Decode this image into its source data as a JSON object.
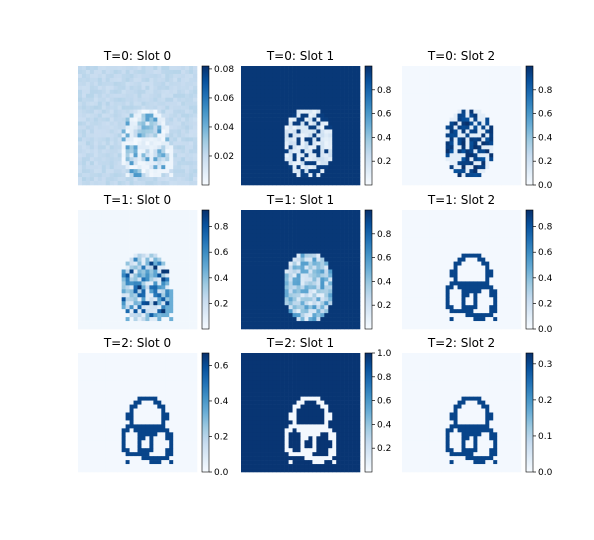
{
  "colormap": {
    "name": "Blues",
    "stops": [
      "#f7fbff",
      "#deebf7",
      "#c6dbef",
      "#9ecae1",
      "#6baed6",
      "#4292c6",
      "#2171b5",
      "#08519c",
      "#08306b"
    ]
  },
  "chart_data": [
    {
      "type": "heatmap",
      "title": "T=0: Slot 0",
      "vmin": 0.0,
      "vmax": 0.082,
      "colorbar_ticks": [
        "0.02",
        "0.04",
        "0.06",
        "0.08"
      ],
      "colorbar_tick_values": [
        0.02,
        0.04,
        0.06,
        0.08
      ],
      "pattern": "faint-silhouette"
    },
    {
      "type": "heatmap",
      "title": "T=0: Slot 1",
      "vmin": 0.0,
      "vmax": 1.0,
      "colorbar_ticks": [
        "0.2",
        "0.4",
        "0.6",
        "0.8"
      ],
      "colorbar_tick_values": [
        0.2,
        0.4,
        0.6,
        0.8
      ],
      "pattern": "dark-background"
    },
    {
      "type": "heatmap",
      "title": "T=0: Slot 2",
      "vmin": 0.0,
      "vmax": 1.0,
      "colorbar_ticks": [
        "0.0",
        "0.2",
        "0.4",
        "0.6",
        "0.8"
      ],
      "colorbar_tick_values": [
        0.0,
        0.2,
        0.4,
        0.6,
        0.8
      ],
      "pattern": "dark-blob"
    },
    {
      "type": "heatmap",
      "title": "T=1: Slot 0",
      "vmin": 0.0,
      "vmax": 0.93,
      "colorbar_ticks": [
        "0.2",
        "0.4",
        "0.6",
        "0.8"
      ],
      "colorbar_tick_values": [
        0.2,
        0.4,
        0.6,
        0.8
      ],
      "pattern": "speckled-blob"
    },
    {
      "type": "heatmap",
      "title": "T=1: Slot 1",
      "vmin": 0.0,
      "vmax": 1.0,
      "colorbar_ticks": [
        "0.2",
        "0.4",
        "0.6",
        "0.8"
      ],
      "colorbar_tick_values": [
        0.2,
        0.4,
        0.6,
        0.8
      ],
      "pattern": "dark-background-soft"
    },
    {
      "type": "heatmap",
      "title": "T=1: Slot 2",
      "vmin": 0.0,
      "vmax": 0.93,
      "colorbar_ticks": [
        "0.0",
        "0.2",
        "0.4",
        "0.6",
        "0.8"
      ],
      "colorbar_tick_values": [
        0.0,
        0.2,
        0.4,
        0.6,
        0.8
      ],
      "pattern": "outline"
    },
    {
      "type": "heatmap",
      "title": "T=2: Slot 0",
      "vmin": 0.0,
      "vmax": 0.67,
      "colorbar_ticks": [
        "0.0",
        "0.2",
        "0.4",
        "0.6"
      ],
      "colorbar_tick_values": [
        0.0,
        0.2,
        0.4,
        0.6
      ],
      "pattern": "outline"
    },
    {
      "type": "heatmap",
      "title": "T=2: Slot 1",
      "vmin": 0.0,
      "vmax": 1.0,
      "colorbar_ticks": [
        "0.2",
        "0.4",
        "0.6",
        "0.8",
        "1.0"
      ],
      "colorbar_tick_values": [
        0.2,
        0.4,
        0.6,
        0.8,
        1.0
      ],
      "pattern": "outline-inverse"
    },
    {
      "type": "heatmap",
      "title": "T=2: Slot 2",
      "vmin": 0.0,
      "vmax": 0.33,
      "colorbar_ticks": [
        "0.0",
        "0.1",
        "0.2",
        "0.3"
      ],
      "colorbar_tick_values": [
        0.0,
        0.1,
        0.2,
        0.3
      ],
      "pattern": "outline"
    }
  ]
}
